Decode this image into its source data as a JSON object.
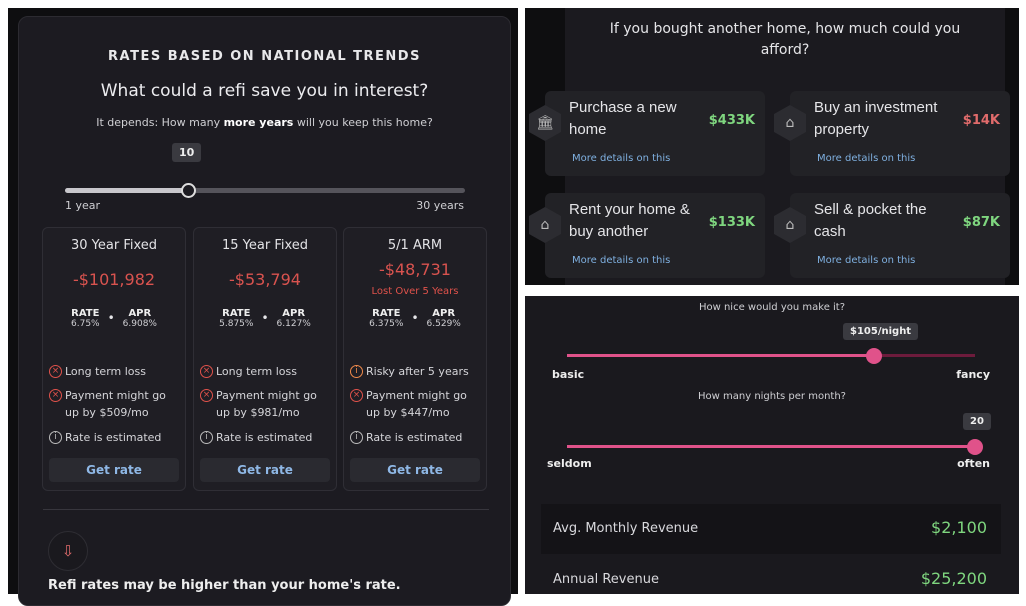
{
  "refi": {
    "kicker": "RATES BASED ON NATIONAL TRENDS",
    "title": "What could a refi save you in interest?",
    "question_prefix": "It depends: How many ",
    "question_bold": "more years",
    "question_suffix": " will you keep this home?",
    "slider": {
      "value": "10",
      "min_label": "1 year",
      "max_label": "30 years",
      "fraction": 0.31
    },
    "cards": [
      {
        "title": "30 Year Fixed",
        "amount": "-$101,982",
        "note": "",
        "rate_label": "RATE",
        "rate": "6.75%",
        "apr_label": "APR",
        "apr": "6.908%",
        "items": [
          {
            "icon": "x-circle-icon",
            "text": "Long term loss"
          },
          {
            "icon": "x-circle-icon",
            "text": "Payment might go up by $509/mo"
          },
          {
            "icon": "info-icon",
            "text": "Rate is estimated"
          }
        ],
        "button": "Get rate"
      },
      {
        "title": "15 Year Fixed",
        "amount": "-$53,794",
        "note": "",
        "rate_label": "RATE",
        "rate": "5.875%",
        "apr_label": "APR",
        "apr": "6.127%",
        "items": [
          {
            "icon": "x-circle-icon",
            "text": "Long term loss"
          },
          {
            "icon": "x-circle-icon",
            "text": "Payment might go up by $981/mo"
          },
          {
            "icon": "info-icon",
            "text": "Rate is estimated"
          }
        ],
        "button": "Get rate"
      },
      {
        "title": "5/1 ARM",
        "amount": "-$48,731",
        "note": "Lost Over 5 Years",
        "rate_label": "RATE",
        "rate": "6.375%",
        "apr_label": "APR",
        "apr": "6.529%",
        "items": [
          {
            "icon": "warning-info-icon",
            "text": "Risky after 5 years"
          },
          {
            "icon": "x-circle-icon",
            "text": "Payment might go up by $447/mo"
          },
          {
            "icon": "info-icon",
            "text": "Rate is estimated"
          }
        ],
        "button": "Get rate"
      }
    ],
    "warning": "Refi rates may be higher than your home's rate."
  },
  "afford": {
    "question": "If you bought another home, how much could you afford?",
    "options": [
      {
        "label": "Purchase a new home",
        "value": "$433K",
        "color": "#7fd67f",
        "icon": "building-icon",
        "link": "More details on this"
      },
      {
        "label": "Buy an investment property",
        "value": "$14K",
        "color": "#e06b6b",
        "icon": "palm-house-icon",
        "link": "More details on this"
      },
      {
        "label": "Rent your home & buy another",
        "value": "$133K",
        "color": "#7fd67f",
        "icon": "two-houses-icon",
        "link": "More details on this"
      },
      {
        "label": "Sell & pocket the cash",
        "value": "$87K",
        "color": "#7fd67f",
        "icon": "house-cash-icon",
        "link": "More details on this"
      }
    ]
  },
  "rental": {
    "q1": "How nice would you make it?",
    "price_tip": "$105/night",
    "price_fraction": 0.75,
    "min1": "basic",
    "max1": "fancy",
    "q2": "How many nights per month?",
    "nights_tip": "20",
    "nights_fraction": 1.0,
    "min2": "seldom",
    "max2": "often",
    "monthly_label": "Avg. Monthly Revenue",
    "monthly": "$2,100",
    "annual_label": "Annual Revenue",
    "annual": "$25,200",
    "accent": "#e0528a"
  }
}
